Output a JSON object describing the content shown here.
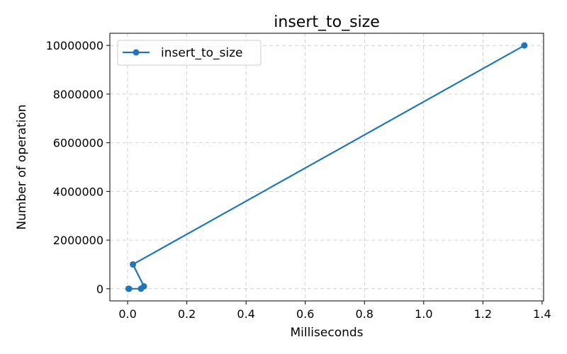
{
  "chart_data": {
    "type": "line",
    "title": "insert_to_size",
    "xlabel": "Milliseconds",
    "ylabel": "Number of operation",
    "xlim": [
      -0.06,
      1.405
    ],
    "ylim": [
      -500000,
      10500000
    ],
    "xticks": [
      0.0,
      0.2,
      0.4,
      0.6,
      0.8,
      1.0,
      1.2,
      1.4
    ],
    "xtick_labels": [
      "0.0",
      "0.2",
      "0.4",
      "0.6",
      "0.8",
      "1.0",
      "1.2",
      "1.4"
    ],
    "yticks": [
      0,
      2000000,
      4000000,
      6000000,
      8000000,
      10000000
    ],
    "ytick_labels": [
      "0",
      "2000000",
      "4000000",
      "6000000",
      "8000000",
      "10000000"
    ],
    "grid": true,
    "legend_position": "upper-left",
    "series": [
      {
        "name": "insert_to_size",
        "color": "#1f77b4",
        "marker": "circle",
        "x": [
          0.003,
          0.005,
          0.045,
          0.055,
          0.018,
          1.34
        ],
        "y": [
          10,
          100,
          1000,
          100000,
          1000000,
          10000000
        ]
      }
    ]
  }
}
